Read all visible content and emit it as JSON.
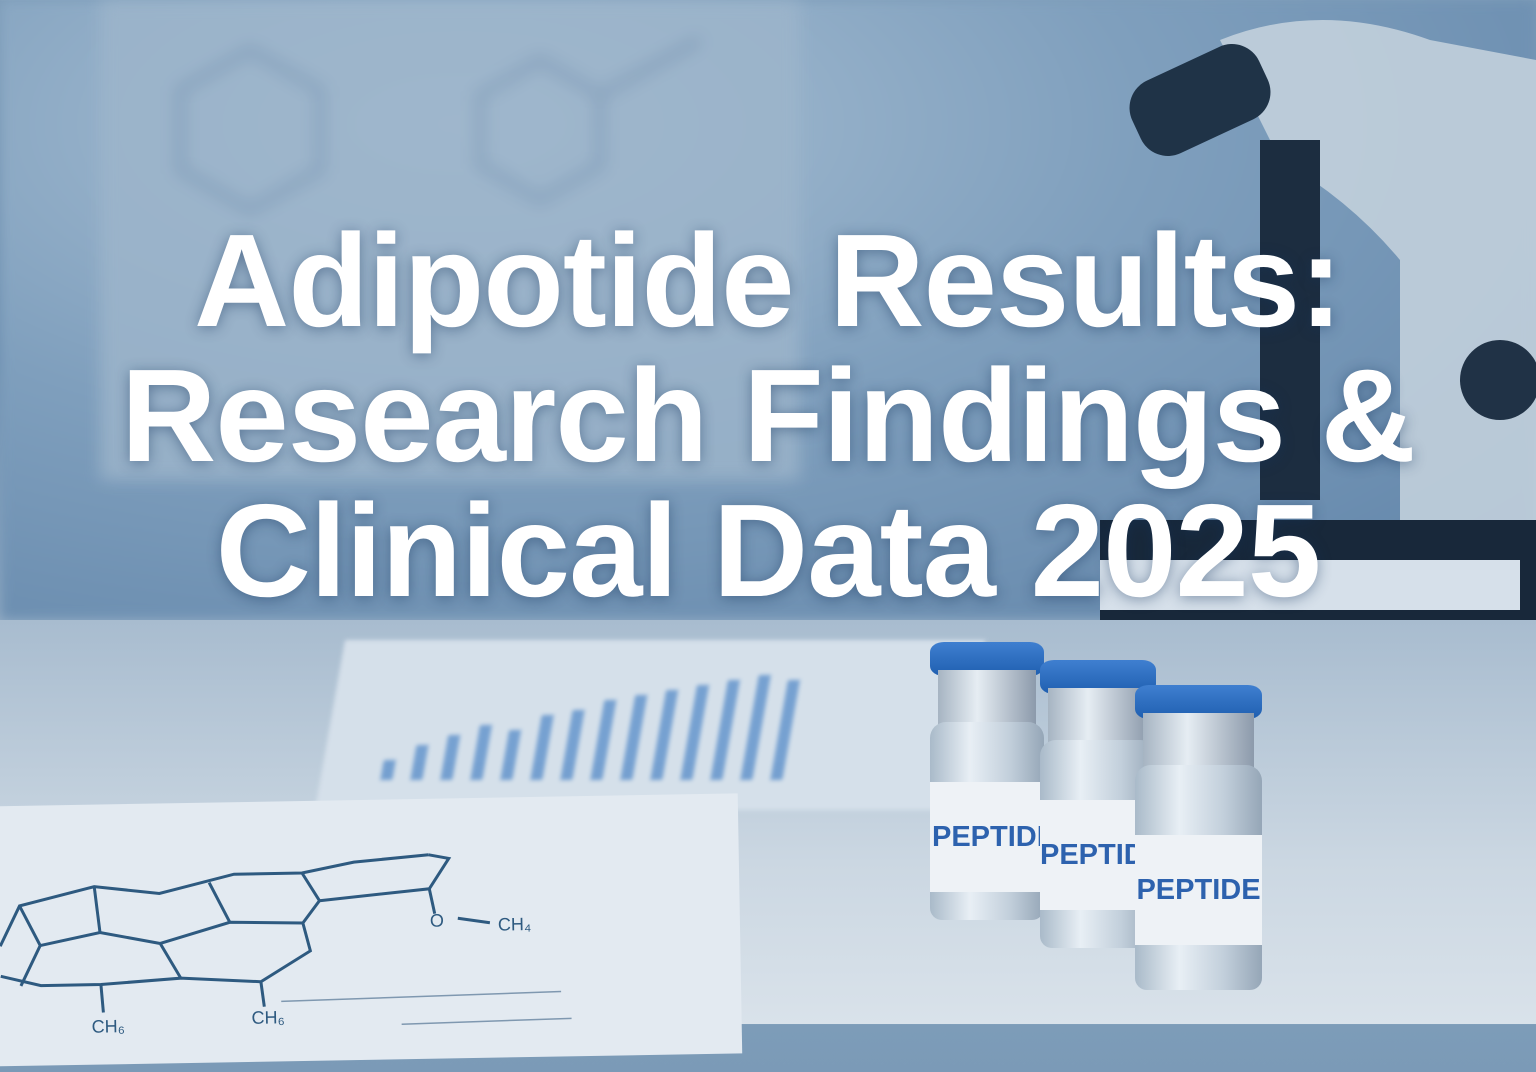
{
  "title": {
    "line1": "Adipotide Results:",
    "line2": "Research Findings &",
    "line3": "Clinical Data 2025"
  },
  "vials": [
    {
      "label": "PEPTIDE"
    },
    {
      "label": "PEPTIDE"
    },
    {
      "label": "PEPTIDE"
    }
  ],
  "molecule_labels": {
    "ch_a": "CH₆",
    "ch_b": "CH₆",
    "o": "O",
    "ch4": "CH₄"
  },
  "colors": {
    "title": "#ffffff",
    "cap": "#2a6bc0",
    "label_text": "#2d62ae",
    "tint": "#6d8fb0"
  }
}
